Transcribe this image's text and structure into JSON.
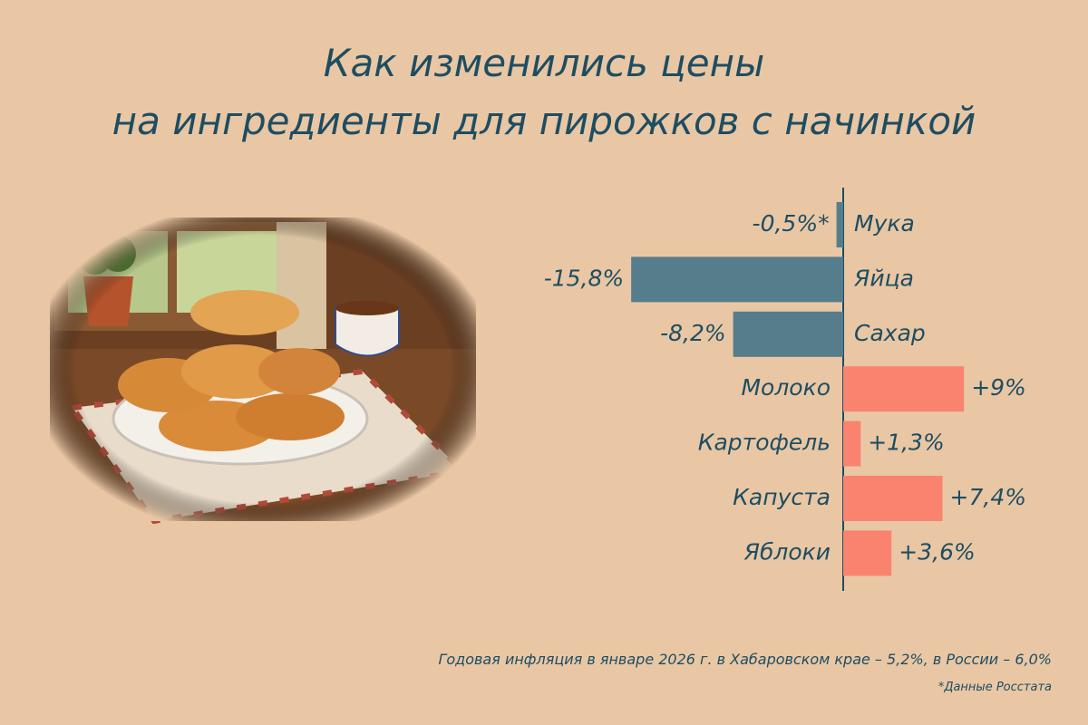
{
  "chart_data": {
    "type": "bar",
    "orientation": "horizontal",
    "title": [
      "Как изменились цены",
      "на ингредиенты для пирожков с начинкой"
    ],
    "categories": [
      "Мука",
      "Яйца",
      "Сахар",
      "Молоко",
      "Картофель",
      "Капуста",
      "Яблоки"
    ],
    "values": [
      -0.5,
      -15.8,
      -8.2,
      9,
      1.3,
      7.4,
      3.6
    ],
    "value_labels": [
      "-0,5%*",
      "-15,8%",
      "-8,2%",
      "+9%",
      "+1,3%",
      "+7,4%",
      "+3,6%"
    ],
    "negative_color": "#557d8c",
    "positive_color": "#f9836f",
    "note": "Годовая инфляция в январе 2026 г. в Хабаровском крае – 5,2%, в России – 6,0%",
    "source": "*Данные Росстата"
  }
}
